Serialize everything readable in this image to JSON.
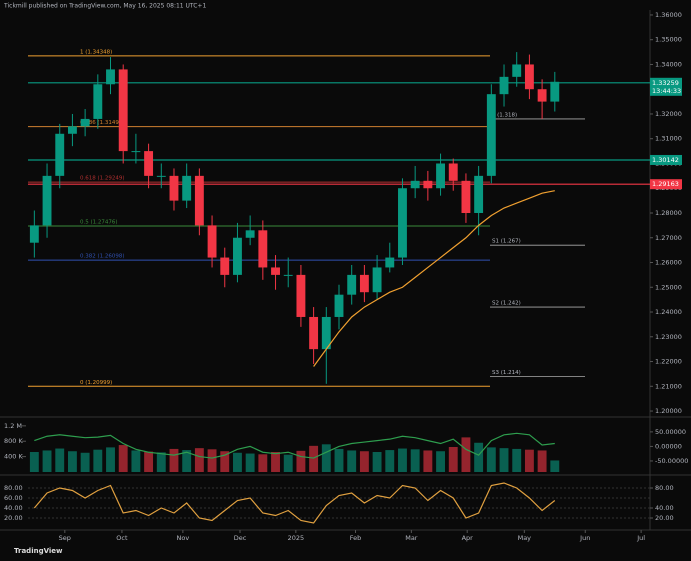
{
  "header": "Tickmill published on TradingView.com, May 16, 2025 08:11 UTC+1",
  "footer": "TradingView",
  "chart_data": {
    "type": "candlestick",
    "xlim": [
      -0.5,
      48.5
    ],
    "xticks": [
      {
        "value": 2.4,
        "label": "Sep"
      },
      {
        "value": 6.9,
        "label": "Oct"
      },
      {
        "value": 11.7,
        "label": "Nov"
      },
      {
        "value": 16.2,
        "label": "Dec"
      },
      {
        "value": 20.6,
        "label": "2025"
      },
      {
        "value": 25.3,
        "label": "Feb"
      },
      {
        "value": 29.7,
        "label": "Mar"
      },
      {
        "value": 34.1,
        "label": "Apr"
      },
      {
        "value": 38.6,
        "label": "May"
      },
      {
        "value": 43.4,
        "label": "Jun"
      },
      {
        "value": 47.8,
        "label": "Jul"
      }
    ],
    "ylim": [
      1.1984,
      1.362
    ],
    "yticks": [
      {
        "value": 1.36,
        "label": "1.36000"
      },
      {
        "value": 1.35,
        "label": "1.35000"
      },
      {
        "value": 1.34,
        "label": "1.34000"
      },
      {
        "value": 1.33,
        "label": "1.33000"
      },
      {
        "value": 1.32,
        "label": "1.32000"
      },
      {
        "value": 1.31,
        "label": "1.31000"
      },
      {
        "value": 1.3,
        "label": "1.30000"
      },
      {
        "value": 1.29,
        "label": "1.29000"
      },
      {
        "value": 1.28,
        "label": "1.28000"
      },
      {
        "value": 1.27,
        "label": "1.27000"
      },
      {
        "value": 1.26,
        "label": "1.26000"
      },
      {
        "value": 1.25,
        "label": "1.25000"
      },
      {
        "value": 1.24,
        "label": "1.24000"
      },
      {
        "value": 1.23,
        "label": "1.23000"
      },
      {
        "value": 1.22,
        "label": "1.22000"
      },
      {
        "value": 1.21,
        "label": "1.21000"
      },
      {
        "value": 1.2,
        "label": "1.20000"
      }
    ],
    "up_color": "#089981",
    "down_color": "#f23645",
    "open": [
      1.268,
      1.275,
      1.295,
      1.312,
      1.315,
      1.318,
      1.332,
      1.338,
      1.305,
      1.305,
      1.295,
      1.295,
      1.285,
      1.295,
      1.275,
      1.262,
      1.255,
      1.27,
      1.273,
      1.258,
      1.255,
      1.255,
      1.238,
      1.225,
      1.238,
      1.247,
      1.255,
      1.248,
      1.258,
      1.262,
      1.29,
      1.293,
      1.29,
      1.3,
      1.293,
      1.28,
      1.295,
      1.328,
      1.335,
      1.34,
      1.33,
      1.325
    ],
    "high": [
      1.281,
      1.3,
      1.316,
      1.32,
      1.322,
      1.336,
      1.343,
      1.34,
      1.312,
      1.308,
      1.3,
      1.298,
      1.3,
      1.298,
      1.279,
      1.266,
      1.276,
      1.279,
      1.277,
      1.263,
      1.262,
      1.259,
      1.242,
      1.242,
      1.251,
      1.259,
      1.259,
      1.263,
      1.268,
      1.294,
      1.299,
      1.297,
      1.304,
      1.302,
      1.296,
      1.299,
      1.332,
      1.34,
      1.345,
      1.344,
      1.334,
      1.337
    ],
    "low": [
      1.262,
      1.27,
      1.29,
      1.307,
      1.311,
      1.314,
      1.328,
      1.3,
      1.3,
      1.29,
      1.29,
      1.281,
      1.282,
      1.271,
      1.258,
      1.25,
      1.252,
      1.267,
      1.253,
      1.249,
      1.25,
      1.234,
      1.219,
      1.211,
      1.233,
      1.243,
      1.244,
      1.245,
      1.256,
      1.259,
      1.286,
      1.285,
      1.287,
      1.289,
      1.276,
      1.271,
      1.292,
      1.323,
      1.331,
      1.326,
      1.318,
      1.321
    ],
    "close": [
      1.275,
      1.295,
      1.312,
      1.315,
      1.318,
      1.332,
      1.338,
      1.305,
      1.305,
      1.295,
      1.295,
      1.285,
      1.295,
      1.275,
      1.262,
      1.255,
      1.27,
      1.273,
      1.258,
      1.255,
      1.255,
      1.238,
      1.225,
      1.238,
      1.247,
      1.255,
      1.248,
      1.258,
      1.262,
      1.29,
      1.293,
      1.29,
      1.3,
      1.293,
      1.28,
      1.295,
      1.328,
      1.335,
      1.34,
      1.33,
      1.325,
      1.333
    ],
    "ma": {
      "color": "#f0a030",
      "values": [
        null,
        null,
        null,
        null,
        null,
        null,
        null,
        null,
        null,
        null,
        null,
        null,
        null,
        null,
        null,
        null,
        null,
        null,
        null,
        null,
        null,
        null,
        1.218,
        1.225,
        1.232,
        1.238,
        1.242,
        1.245,
        1.248,
        1.25,
        1.254,
        1.258,
        1.262,
        1.266,
        1.27,
        1.275,
        1.279,
        1.282,
        1.284,
        1.286,
        1.288,
        1.289
      ]
    },
    "fib_levels": [
      {
        "label": "1 (1.34348)",
        "value": 1.34348,
        "color": "#f0a030"
      },
      {
        "label": "0.786 (1.31491)",
        "value": 1.31491,
        "color": "#d08030"
      },
      {
        "label": "0.618 (1.29249)",
        "value": 1.29249,
        "color": "#b03030"
      },
      {
        "label": "0.5 (1.27476)",
        "value": 1.27476,
        "color": "#3a8a3a"
      },
      {
        "label": "0.382 (1.26098)",
        "value": 1.26098,
        "color": "#3050b0"
      },
      {
        "label": "0 (1.20999)",
        "value": 1.20999,
        "color": "#f0a030"
      }
    ],
    "pivots": [
      {
        "label": "P (1.318)",
        "value": 1.318
      },
      {
        "label": "S1 (1.267)",
        "value": 1.267
      },
      {
        "label": "S2 (1.242)",
        "value": 1.242
      },
      {
        "label": "S3 (1.214)",
        "value": 1.214
      }
    ],
    "price_tags": [
      {
        "value": 1.33259,
        "color": "#089981"
      },
      {
        "value": 1.30142,
        "color": "#089981"
      },
      {
        "value": 1.29163,
        "color": "#f23645"
      }
    ],
    "countdown": "13:44:33",
    "volume": {
      "ylim": [
        0,
        1300000
      ],
      "yticks": [
        {
          "value": 1200000,
          "label": "1.2 M"
        },
        {
          "value": 800000,
          "label": "800 K"
        },
        {
          "value": 400000,
          "label": "400 K"
        }
      ],
      "values": [
        520000,
        560000,
        610000,
        540000,
        500000,
        580000,
        640000,
        700000,
        560000,
        530000,
        510000,
        600000,
        570000,
        620000,
        590000,
        540000,
        500000,
        480000,
        460000,
        520000,
        450000,
        550000,
        680000,
        720000,
        600000,
        560000,
        540000,
        520000,
        570000,
        610000,
        590000,
        560000,
        540000,
        650000,
        900000,
        760000,
        640000,
        620000,
        600000,
        580000,
        560000,
        300000
      ],
      "y2lim": [
        -88,
        84
      ],
      "y2ticks": [
        {
          "value": 50,
          "label": "50.00000"
        },
        {
          "value": 0,
          "label": "0.00000"
        },
        {
          "value": -50,
          "label": "-50.00000"
        }
      ],
      "line": {
        "color": "#2e9e4e",
        "values": [
          20,
          35,
          40,
          35,
          30,
          32,
          38,
          10,
          -10,
          -20,
          -25,
          -30,
          -20,
          -35,
          -40,
          -30,
          -10,
          0,
          -20,
          -25,
          -20,
          -35,
          -40,
          -20,
          0,
          10,
          15,
          20,
          25,
          35,
          30,
          20,
          10,
          25,
          -10,
          -30,
          20,
          40,
          45,
          40,
          5,
          10
        ]
      }
    },
    "oscillator": {
      "ylim": [
        0,
        100
      ],
      "yticks": [
        {
          "value": 80,
          "label": "80.00"
        },
        {
          "value": 60,
          "label": "60.00"
        },
        {
          "value": 40,
          "label": "40.00"
        },
        {
          "value": 20,
          "label": "20.00"
        }
      ],
      "y2ticks": [
        {
          "value": 80,
          "label": "80.00"
        },
        {
          "value": 40,
          "label": "40.00"
        },
        {
          "value": 20,
          "label": "20.00"
        }
      ],
      "color": "#e0a040",
      "values": [
        40,
        70,
        80,
        75,
        60,
        75,
        85,
        30,
        35,
        25,
        40,
        30,
        50,
        20,
        15,
        35,
        55,
        60,
        30,
        25,
        35,
        15,
        10,
        45,
        65,
        70,
        50,
        65,
        60,
        85,
        80,
        55,
        75,
        60,
        20,
        30,
        85,
        90,
        80,
        60,
        35,
        55
      ]
    }
  }
}
